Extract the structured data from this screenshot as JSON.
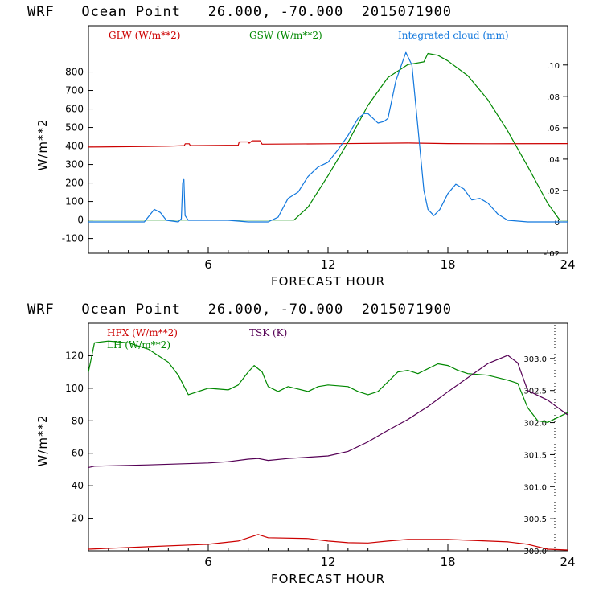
{
  "chart_data": [
    {
      "type": "line",
      "title": "WRF   Ocean Point   26.000, -70.000  2015071900",
      "xlabel": "FORECAST HOUR",
      "ylabel": "W/m**2",
      "xlim": [
        0,
        24
      ],
      "ylim": [
        -180,
        1050
      ],
      "y2lim": [
        -0.02,
        0.125
      ],
      "xticks": [
        "6",
        "12",
        "18",
        "24"
      ],
      "yticks": [
        "-100",
        "0",
        "100",
        "200",
        "300",
        "400",
        "500",
        "600",
        "700",
        "800"
      ],
      "y2ticks": [
        "-.02",
        "0",
        ".02",
        ".04",
        ".06",
        ".08",
        ".10"
      ],
      "series": [
        {
          "name": "GLW (W/m**2)",
          "color": "#cc0000",
          "axis": "left",
          "points": [
            [
              0,
              394
            ],
            [
              3,
              397
            ],
            [
              4,
              399
            ],
            [
              4.8,
              402
            ],
            [
              4.85,
              412
            ],
            [
              5.05,
              412
            ],
            [
              5.1,
              402
            ],
            [
              7.5,
              404
            ],
            [
              7.55,
              422
            ],
            [
              8.0,
              422
            ],
            [
              8.05,
              415
            ],
            [
              8.2,
              428
            ],
            [
              8.6,
              428
            ],
            [
              8.7,
              410
            ],
            [
              12,
              412
            ],
            [
              16,
              416
            ],
            [
              18,
              413
            ],
            [
              20,
              412
            ],
            [
              24,
              413
            ]
          ]
        },
        {
          "name": "GSW (W/m**2)",
          "color": "#008800",
          "axis": "left",
          "points": [
            [
              0,
              0
            ],
            [
              10.3,
              0
            ],
            [
              11,
              70
            ],
            [
              12,
              240
            ],
            [
              13,
              420
            ],
            [
              14,
              620
            ],
            [
              15,
              770
            ],
            [
              16,
              840
            ],
            [
              16.8,
              855
            ],
            [
              17,
              900
            ],
            [
              17.5,
              890
            ],
            [
              18,
              860
            ],
            [
              19,
              780
            ],
            [
              20,
              650
            ],
            [
              21,
              480
            ],
            [
              22,
              290
            ],
            [
              23,
              90
            ],
            [
              23.6,
              0
            ],
            [
              24,
              0
            ]
          ]
        },
        {
          "name": "Integrated cloud (mm)",
          "color": "#1177dd",
          "axis": "right",
          "points": [
            [
              0,
              0
            ],
            [
              2.8,
              0
            ],
            [
              3.3,
              0.008
            ],
            [
              3.6,
              0.006
            ],
            [
              3.9,
              0.001
            ],
            [
              4.5,
              0
            ],
            [
              4.65,
              0.002
            ],
            [
              4.72,
              0.025
            ],
            [
              4.78,
              0.027
            ],
            [
              4.84,
              0.004
            ],
            [
              5.0,
              0.001
            ],
            [
              5.5,
              0.001
            ],
            [
              6.5,
              0.001
            ],
            [
              7,
              0.001
            ],
            [
              8,
              0
            ],
            [
              9,
              0
            ],
            [
              9.5,
              0.003
            ],
            [
              10,
              0.015
            ],
            [
              10.5,
              0.019
            ],
            [
              11,
              0.029
            ],
            [
              11.5,
              0.035
            ],
            [
              12,
              0.038
            ],
            [
              12.5,
              0.046
            ],
            [
              13,
              0.055
            ],
            [
              13.5,
              0.066
            ],
            [
              13.8,
              0.069
            ],
            [
              14,
              0.069
            ],
            [
              14.5,
              0.063
            ],
            [
              14.8,
              0.064
            ],
            [
              15,
              0.066
            ],
            [
              15.4,
              0.09
            ],
            [
              15.9,
              0.108
            ],
            [
              16.2,
              0.1
            ],
            [
              16.5,
              0.06
            ],
            [
              16.8,
              0.02
            ],
            [
              17,
              0.008
            ],
            [
              17.3,
              0.004
            ],
            [
              17.6,
              0.008
            ],
            [
              18.0,
              0.018
            ],
            [
              18.4,
              0.024
            ],
            [
              18.8,
              0.021
            ],
            [
              19.2,
              0.014
            ],
            [
              19.6,
              0.015
            ],
            [
              20,
              0.012
            ],
            [
              20.5,
              0.005
            ],
            [
              21,
              0.001
            ],
            [
              22,
              0
            ],
            [
              24,
              0
            ]
          ]
        }
      ]
    },
    {
      "type": "line",
      "title": "WRF   Ocean Point   26.000, -70.000  2015071900",
      "xlabel": "FORECAST HOUR",
      "ylabel": "W/m**2",
      "xlim": [
        0,
        24
      ],
      "ylim": [
        0,
        140
      ],
      "y2lim": [
        300.0,
        303.55
      ],
      "xticks": [
        "6",
        "12",
        "18",
        "24"
      ],
      "yticks": [
        "20",
        "40",
        "60",
        "80",
        "100",
        "120"
      ],
      "y2ticks": [
        "300.0",
        "300.5",
        "301.0",
        "301.5",
        "302.0",
        "302.5",
        "303.0"
      ],
      "series": [
        {
          "name": "HFX (W/m**2)",
          "color": "#cc0000",
          "axis": "left",
          "points": [
            [
              0,
              1
            ],
            [
              3,
              2.5
            ],
            [
              6,
              4
            ],
            [
              7.5,
              6
            ],
            [
              8.5,
              10
            ],
            [
              9,
              8
            ],
            [
              11,
              7.5
            ],
            [
              12,
              6
            ],
            [
              13,
              5
            ],
            [
              14,
              4.8
            ],
            [
              15,
              6
            ],
            [
              16,
              7
            ],
            [
              18,
              7
            ],
            [
              20,
              6
            ],
            [
              21,
              5.5
            ],
            [
              22,
              4
            ],
            [
              23,
              1
            ],
            [
              24,
              0.5
            ]
          ]
        },
        {
          "name": "LH (W/m**2)",
          "color": "#008800",
          "axis": "left",
          "points": [
            [
              0,
              110
            ],
            [
              0.3,
              128
            ],
            [
              1,
              129
            ],
            [
              2,
              128
            ],
            [
              3,
              124
            ],
            [
              4,
              116
            ],
            [
              4.5,
              108
            ],
            [
              5,
              96
            ],
            [
              5.5,
              98
            ],
            [
              6,
              100
            ],
            [
              7,
              99
            ],
            [
              7.5,
              102
            ],
            [
              8,
              110
            ],
            [
              8.3,
              114
            ],
            [
              8.7,
              110
            ],
            [
              9,
              101
            ],
            [
              9.5,
              98
            ],
            [
              10,
              101
            ],
            [
              11,
              98
            ],
            [
              11.5,
              101
            ],
            [
              12,
              102
            ],
            [
              13,
              101
            ],
            [
              13.5,
              98
            ],
            [
              14,
              96
            ],
            [
              14.5,
              98
            ],
            [
              15,
              104
            ],
            [
              15.5,
              110
            ],
            [
              16,
              111
            ],
            [
              16.5,
              109
            ],
            [
              17,
              112
            ],
            [
              17.5,
              115
            ],
            [
              18,
              114
            ],
            [
              18.5,
              111
            ],
            [
              19,
              109
            ],
            [
              20,
              108
            ],
            [
              21,
              105
            ],
            [
              21.5,
              103
            ],
            [
              22,
              88
            ],
            [
              22.5,
              80
            ],
            [
              23,
              79
            ],
            [
              24,
              85
            ]
          ]
        },
        {
          "name": "TSK (K)",
          "color": "#550055",
          "axis": "right",
          "points": [
            [
              0,
              301.3
            ],
            [
              0.3,
              301.32
            ],
            [
              3,
              301.34
            ],
            [
              6,
              301.37
            ],
            [
              7,
              301.39
            ],
            [
              8,
              301.43
            ],
            [
              8.5,
              301.44
            ],
            [
              9,
              301.41
            ],
            [
              10,
              301.44
            ],
            [
              11,
              301.46
            ],
            [
              12,
              301.48
            ],
            [
              13,
              301.55
            ],
            [
              14,
              301.7
            ],
            [
              15,
              301.88
            ],
            [
              16,
              302.05
            ],
            [
              17,
              302.25
            ],
            [
              18,
              302.48
            ],
            [
              19,
              302.7
            ],
            [
              20,
              302.92
            ],
            [
              21,
              303.05
            ],
            [
              21.5,
              302.93
            ],
            [
              22,
              302.5
            ],
            [
              23,
              302.35
            ],
            [
              24,
              302.12
            ]
          ]
        }
      ]
    }
  ]
}
